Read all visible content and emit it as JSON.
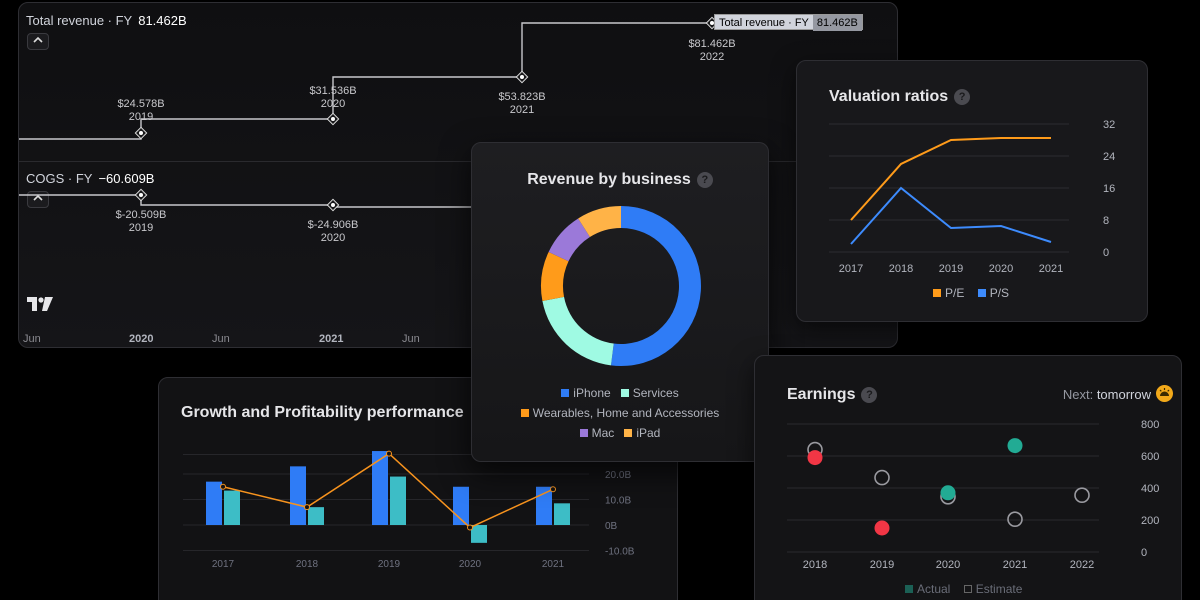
{
  "main": {
    "revenue_legend": {
      "label": "Total revenue · FY",
      "value": "81.462B"
    },
    "cogs_legend": {
      "label": "COGS · FY",
      "value": "−60.609B"
    },
    "collapse_icon": "chevron-up-icon",
    "tooltip": {
      "label": "Total revenue · FY",
      "value": "81.462B"
    },
    "revenue_points": [
      {
        "value": "$24.578B",
        "year": "2019"
      },
      {
        "value": "$31.536B",
        "year": "2020"
      },
      {
        "value": "$53.823B",
        "year": "2021"
      },
      {
        "value": "$81.462B",
        "year": "2022"
      }
    ],
    "cogs_points": [
      {
        "value": "$-20.509B",
        "year": "2019"
      },
      {
        "value": "$-24.906B",
        "year": "2020"
      }
    ],
    "time_axis": [
      "Jun",
      "2020",
      "Jun",
      "2021",
      "Jun"
    ],
    "logo": "TV"
  },
  "revenue_by_business": {
    "title": "Revenue by business",
    "help_icon": "question-icon",
    "legend": [
      {
        "name": "iPhone",
        "color": "#2f7cf6"
      },
      {
        "name": "Services",
        "color": "#9ffae3"
      },
      {
        "name": "Wearables, Home and Accessories",
        "color": "#ff9b1a"
      },
      {
        "name": "Mac",
        "color": "#9b79d9"
      },
      {
        "name": "iPad",
        "color": "#ffb347"
      }
    ],
    "chart_data": {
      "type": "pie",
      "categories": [
        "iPhone",
        "Services",
        "Wearables, Home and Accessories",
        "Mac",
        "iPad"
      ],
      "values": [
        52,
        20,
        10,
        9,
        9
      ]
    }
  },
  "valuation": {
    "title": "Valuation ratios",
    "help_icon": "question-icon",
    "legend": [
      {
        "name": "P/E",
        "color": "#ff9b1a"
      },
      {
        "name": "P/S",
        "color": "#3d8bfd"
      }
    ],
    "chart_data": {
      "type": "line",
      "x": [
        "2017",
        "2018",
        "2019",
        "2020",
        "2021"
      ],
      "series": [
        {
          "name": "P/E",
          "values": [
            8,
            22,
            28,
            28.5,
            28.5
          ]
        },
        {
          "name": "P/S",
          "values": [
            2,
            16,
            6,
            6.5,
            2.5
          ]
        }
      ],
      "yticks": [
        "32",
        "24",
        "16",
        "8",
        "0"
      ],
      "ylim": [
        0,
        32
      ]
    }
  },
  "growth": {
    "title": "Growth and Profitability performance",
    "chart_data": {
      "type": "bar",
      "categories": [
        "2017",
        "2018",
        "2019",
        "2020",
        "2021"
      ],
      "series": [
        {
          "values": [
            17,
            23,
            29,
            15,
            15
          ],
          "color": "#2f7cf6"
        },
        {
          "values": [
            13.5,
            7,
            19,
            -7,
            8.5
          ],
          "color": "#3dbdc6"
        },
        {
          "values": [
            15,
            7,
            28,
            -1,
            14
          ],
          "color": "#f7931e"
        }
      ],
      "yticks": [
        "20.0B",
        "10.0B",
        "0B",
        "-10.0B"
      ],
      "ylim": [
        -10,
        30
      ]
    }
  },
  "earnings": {
    "title": "Earnings",
    "help_icon": "question-icon",
    "next_label": "Next:",
    "next_value": "tomorrow",
    "next_icon": "sun-icon",
    "legend": [
      {
        "name": "Actual",
        "color": "#22ab94"
      },
      {
        "name": "Estimate",
        "color": "#888"
      }
    ],
    "chart_data": {
      "type": "scatter",
      "x": [
        "2018",
        "2019",
        "2020",
        "2021",
        "2022"
      ],
      "series": [
        {
          "name": "Actual",
          "values": [
            590,
            150,
            370,
            665,
            null
          ],
          "colors": [
            "#f23645",
            "#f23645",
            "#22ab94",
            "#22ab94",
            null
          ]
        },
        {
          "name": "Estimate",
          "values": [
            640,
            465,
            345,
            205,
            355
          ]
        }
      ],
      "yticks": [
        "800",
        "600",
        "400",
        "200",
        "0"
      ],
      "ylim": [
        0,
        800
      ]
    }
  }
}
